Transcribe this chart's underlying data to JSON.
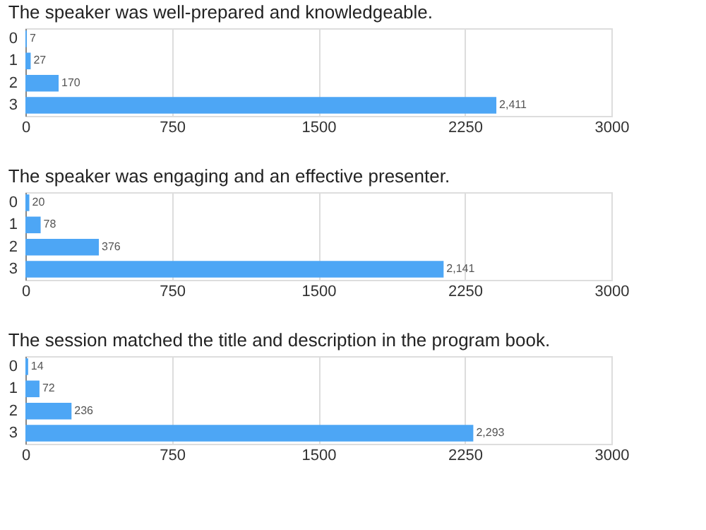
{
  "chart_data": [
    {
      "type": "bar",
      "orientation": "horizontal",
      "title": "The speaker was well-prepared and knowledgeable.",
      "categories": [
        "0",
        "1",
        "2",
        "3"
      ],
      "values": [
        7,
        27,
        170,
        2411
      ],
      "value_labels": [
        "7",
        "27",
        "170",
        "2,411"
      ],
      "color": "#4da6f5",
      "xlim": [
        0,
        3000
      ],
      "xticks": [
        0,
        750,
        1500,
        2250,
        3000
      ],
      "grid": "x"
    },
    {
      "type": "bar",
      "orientation": "horizontal",
      "title": "The speaker was engaging and an effective presenter.",
      "categories": [
        "0",
        "1",
        "2",
        "3"
      ],
      "values": [
        20,
        78,
        376,
        2141
      ],
      "value_labels": [
        "20",
        "78",
        "376",
        "2,141"
      ],
      "color": "#4da6f5",
      "xlim": [
        0,
        3000
      ],
      "xticks": [
        0,
        750,
        1500,
        2250,
        3000
      ],
      "grid": "x"
    },
    {
      "type": "bar",
      "orientation": "horizontal",
      "title": "The session matched the title and description in the program book.",
      "categories": [
        "0",
        "1",
        "2",
        "3"
      ],
      "values": [
        14,
        72,
        236,
        2293
      ],
      "value_labels": [
        "14",
        "72",
        "236",
        "2,293"
      ],
      "color": "#4da6f5",
      "xlim": [
        0,
        3000
      ],
      "xticks": [
        0,
        750,
        1500,
        2250,
        3000
      ],
      "grid": "x"
    }
  ]
}
